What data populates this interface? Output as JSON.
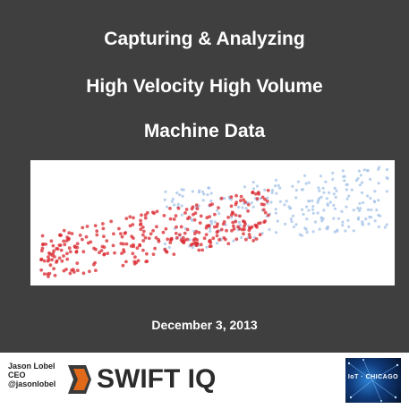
{
  "slide": {
    "title_lines": [
      "Capturing & Analyzing",
      "High Velocity High Volume",
      "Machine Data"
    ],
    "date": "December 3, 2013"
  },
  "presenter": {
    "name": "Jason Lobel",
    "role": "CEO",
    "handle": "@jasonlobel"
  },
  "logo": {
    "text": "SWIFT IQ",
    "icon": "swiftiq-logo-icon"
  },
  "badge": {
    "text": "IoT · CHICAGO",
    "icon": "iot-chicago-badge"
  },
  "colors": {
    "background": "#3f3f3f",
    "red_points": "#d9282f",
    "blue_points": "#a9c6e8"
  }
}
